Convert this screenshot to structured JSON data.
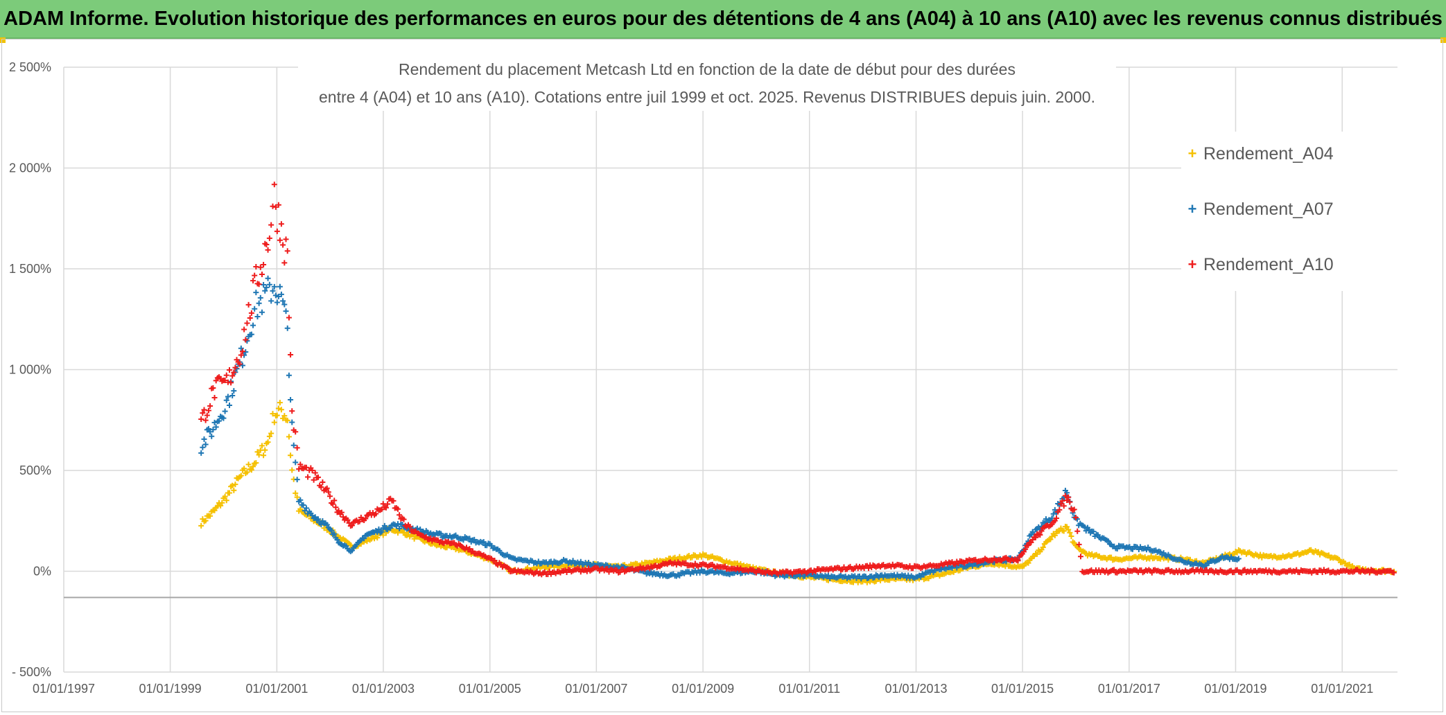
{
  "banner": {
    "text": "ADAM Informe. Evolution historique des performances en euros pour des détentions de 4 ans (A04) à 10 ans (A10) avec les revenus connus distribués",
    "bg": "#7ccb7a"
  },
  "chart_data": {
    "type": "scatter",
    "title_line1": "Rendement du placement Metcash Ltd en fonction de la date de début pour des durées",
    "title_line2": "entre 4 (A04) et 10 ans (A10). Cotations entre juil 1999 et oct. 2025. Revenus DISTRIBUES depuis juin. 2000.",
    "xlim": [
      "1997-01-01",
      "2022-01-15"
    ],
    "ylim": [
      -500,
      2500
    ],
    "y_ticks": [
      -500,
      0,
      500,
      1000,
      1500,
      2000,
      2500
    ],
    "y_tick_labels": [
      "- 500%",
      "0%",
      "500%",
      "1 000%",
      "1 500%",
      "2 000%",
      "2 500%"
    ],
    "x_ticks": [
      "1997-01-01",
      "1999-01-01",
      "2001-01-01",
      "2003-01-01",
      "2005-01-01",
      "2007-01-01",
      "2009-01-01",
      "2011-01-01",
      "2013-01-01",
      "2015-01-01",
      "2017-01-01",
      "2019-01-01",
      "2021-01-01"
    ],
    "x_tick_labels": [
      "01/01/1997",
      "01/01/1999",
      "01/01/2001",
      "01/01/2003",
      "01/01/2005",
      "01/01/2007",
      "01/01/2009",
      "01/01/2011",
      "01/01/2013",
      "01/01/2015",
      "01/01/2017",
      "01/01/2019",
      "01/01/2021"
    ],
    "grid": true,
    "legend_position": "right",
    "series": [
      {
        "name": "Rendement_A04",
        "color": "#f5c000",
        "points": [
          [
            "1999-08-01",
            240
          ],
          [
            "1999-11-01",
            300
          ],
          [
            "2000-02-01",
            380
          ],
          [
            "2000-05-01",
            470
          ],
          [
            "2000-08-01",
            540
          ],
          [
            "2000-11-01",
            640
          ],
          [
            "2000-12-15",
            780
          ],
          [
            "2001-02-01",
            800
          ],
          [
            "2001-03-15",
            760
          ],
          [
            "2001-04-15",
            500
          ],
          [
            "2001-06-01",
            300
          ],
          [
            "2001-09-01",
            260
          ],
          [
            "2001-12-01",
            220
          ],
          [
            "2002-03-01",
            170
          ],
          [
            "2002-06-01",
            120
          ],
          [
            "2002-09-01",
            150
          ],
          [
            "2002-12-01",
            180
          ],
          [
            "2003-03-01",
            210
          ],
          [
            "2003-06-01",
            190
          ],
          [
            "2003-09-01",
            160
          ],
          [
            "2004-01-01",
            130
          ],
          [
            "2004-06-01",
            110
          ],
          [
            "2005-01-01",
            60
          ],
          [
            "2005-06-01",
            0
          ],
          [
            "2006-01-01",
            20
          ],
          [
            "2006-06-01",
            30
          ],
          [
            "2007-01-01",
            30
          ],
          [
            "2007-06-01",
            20
          ],
          [
            "2008-01-01",
            40
          ],
          [
            "2008-06-01",
            60
          ],
          [
            "2009-01-01",
            80
          ],
          [
            "2009-06-01",
            50
          ],
          [
            "2010-01-01",
            10
          ],
          [
            "2010-06-01",
            -10
          ],
          [
            "2011-01-01",
            -30
          ],
          [
            "2011-06-01",
            -40
          ],
          [
            "2012-01-01",
            -50
          ],
          [
            "2012-06-01",
            -40
          ],
          [
            "2013-01-01",
            -40
          ],
          [
            "2013-06-01",
            -20
          ],
          [
            "2014-01-01",
            20
          ],
          [
            "2014-06-01",
            40
          ],
          [
            "2015-01-01",
            20
          ],
          [
            "2015-04-01",
            80
          ],
          [
            "2015-08-01",
            180
          ],
          [
            "2015-11-01",
            220
          ],
          [
            "2016-01-01",
            120
          ],
          [
            "2016-04-01",
            80
          ],
          [
            "2016-10-01",
            60
          ],
          [
            "2017-06-01",
            70
          ],
          [
            "2018-01-01",
            60
          ],
          [
            "2018-06-01",
            40
          ],
          [
            "2018-10-01",
            70
          ],
          [
            "2019-02-01",
            100
          ],
          [
            "2019-08-01",
            70
          ],
          [
            "2020-02-01",
            80
          ],
          [
            "2020-06-01",
            100
          ],
          [
            "2020-12-01",
            60
          ],
          [
            "2021-04-01",
            10
          ],
          [
            "2021-08-01",
            5
          ],
          [
            "2022-01-01",
            0
          ]
        ]
      },
      {
        "name": "Rendement_A07",
        "color": "#1f77b4",
        "points": [
          [
            "1999-08-01",
            620
          ],
          [
            "1999-11-01",
            720
          ],
          [
            "2000-02-01",
            850
          ],
          [
            "2000-05-01",
            1050
          ],
          [
            "2000-08-01",
            1300
          ],
          [
            "2000-11-01",
            1380
          ],
          [
            "2000-12-15",
            1420
          ],
          [
            "2001-02-01",
            1350
          ],
          [
            "2001-03-15",
            1200
          ],
          [
            "2001-04-15",
            700
          ],
          [
            "2001-06-01",
            350
          ],
          [
            "2001-09-01",
            280
          ],
          [
            "2001-12-01",
            230
          ],
          [
            "2002-03-01",
            150
          ],
          [
            "2002-06-01",
            100
          ],
          [
            "2002-09-01",
            180
          ],
          [
            "2002-12-01",
            200
          ],
          [
            "2003-03-01",
            230
          ],
          [
            "2003-06-01",
            220
          ],
          [
            "2003-09-01",
            200
          ],
          [
            "2004-01-01",
            180
          ],
          [
            "2004-06-01",
            170
          ],
          [
            "2005-01-01",
            130
          ],
          [
            "2005-06-01",
            60
          ],
          [
            "2006-01-01",
            40
          ],
          [
            "2006-06-01",
            50
          ],
          [
            "2007-01-01",
            30
          ],
          [
            "2007-06-01",
            20
          ],
          [
            "2008-01-01",
            -10
          ],
          [
            "2008-06-01",
            -20
          ],
          [
            "2009-01-01",
            0
          ],
          [
            "2009-06-01",
            -10
          ],
          [
            "2010-01-01",
            0
          ],
          [
            "2010-06-01",
            -20
          ],
          [
            "2011-01-01",
            -20
          ],
          [
            "2011-06-01",
            -30
          ],
          [
            "2012-01-01",
            -30
          ],
          [
            "2012-06-01",
            -20
          ],
          [
            "2013-01-01",
            -30
          ],
          [
            "2013-06-01",
            10
          ],
          [
            "2014-01-01",
            30
          ],
          [
            "2014-06-01",
            50
          ],
          [
            "2014-12-01",
            60
          ],
          [
            "2015-03-01",
            180
          ],
          [
            "2015-08-01",
            280
          ],
          [
            "2015-11-01",
            400
          ],
          [
            "2016-01-01",
            250
          ],
          [
            "2016-04-01",
            200
          ],
          [
            "2016-10-01",
            120
          ],
          [
            "2017-06-01",
            110
          ],
          [
            "2018-01-01",
            50
          ],
          [
            "2018-06-01",
            30
          ],
          [
            "2018-10-01",
            70
          ],
          [
            "2019-02-01",
            60
          ]
        ]
      },
      {
        "name": "Rendement_A10",
        "color": "#ee1c1c",
        "points": [
          [
            "1999-08-01",
            740
          ],
          [
            "1999-11-01",
            900
          ],
          [
            "2000-02-01",
            940
          ],
          [
            "2000-05-01",
            1100
          ],
          [
            "2000-08-01",
            1400
          ],
          [
            "2000-11-01",
            1650
          ],
          [
            "2000-12-15",
            1850
          ],
          [
            "2001-02-01",
            1700
          ],
          [
            "2001-03-15",
            1550
          ],
          [
            "2001-04-15",
            800
          ],
          [
            "2001-06-01",
            520
          ],
          [
            "2001-09-01",
            480
          ],
          [
            "2001-12-01",
            400
          ],
          [
            "2002-03-01",
            300
          ],
          [
            "2002-06-01",
            230
          ],
          [
            "2002-09-01",
            270
          ],
          [
            "2002-12-01",
            300
          ],
          [
            "2003-03-01",
            350
          ],
          [
            "2003-06-01",
            230
          ],
          [
            "2003-09-01",
            180
          ],
          [
            "2004-01-01",
            150
          ],
          [
            "2004-06-01",
            130
          ],
          [
            "2005-01-01",
            60
          ],
          [
            "2005-06-01",
            0
          ],
          [
            "2006-01-01",
            -10
          ],
          [
            "2006-06-01",
            0
          ],
          [
            "2007-01-01",
            10
          ],
          [
            "2007-06-01",
            0
          ],
          [
            "2008-01-01",
            20
          ],
          [
            "2008-06-01",
            40
          ],
          [
            "2009-01-01",
            30
          ],
          [
            "2009-06-01",
            20
          ],
          [
            "2010-01-01",
            0
          ],
          [
            "2010-06-01",
            -10
          ],
          [
            "2011-01-01",
            0
          ],
          [
            "2011-06-01",
            10
          ],
          [
            "2012-01-01",
            20
          ],
          [
            "2012-06-01",
            30
          ],
          [
            "2013-01-01",
            20
          ],
          [
            "2013-06-01",
            30
          ],
          [
            "2014-01-01",
            50
          ],
          [
            "2014-06-01",
            60
          ],
          [
            "2014-12-01",
            60
          ],
          [
            "2015-03-01",
            150
          ],
          [
            "2015-08-01",
            250
          ],
          [
            "2015-11-01",
            370
          ],
          [
            "2016-01-01",
            280
          ],
          [
            "2016-02-15",
            0
          ],
          [
            "2017-01-01",
            0
          ],
          [
            "2018-01-01",
            0
          ],
          [
            "2019-01-01",
            0
          ],
          [
            "2020-01-01",
            0
          ],
          [
            "2021-01-01",
            0
          ],
          [
            "2022-01-01",
            0
          ]
        ]
      }
    ]
  }
}
